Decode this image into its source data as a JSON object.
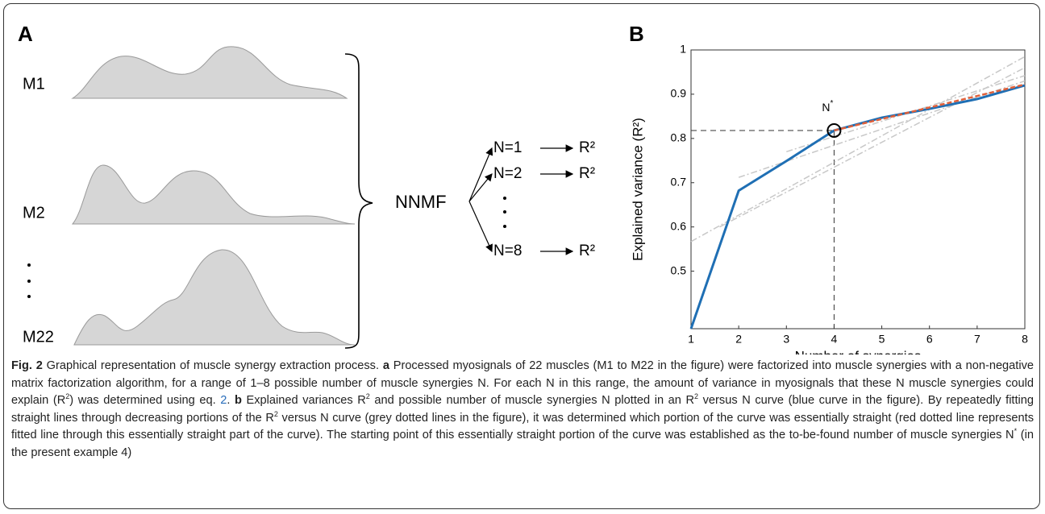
{
  "panel_a": {
    "label": "A",
    "muscles": [
      "M1",
      "M2",
      "M22"
    ],
    "method": "NNMF",
    "branches": [
      {
        "n": "N=1",
        "r": "R²"
      },
      {
        "n": "N=2",
        "r": "R²"
      },
      {
        "n": "N=8",
        "r": "R²"
      }
    ]
  },
  "chart_data": {
    "type": "line",
    "label": "B",
    "x": [
      1,
      2,
      3,
      4,
      5,
      6,
      7,
      8
    ],
    "series": [
      {
        "color": "#1f6fb4",
        "values": [
          0.37,
          0.682,
          0.749,
          0.818,
          0.847,
          0.867,
          0.889,
          0.92
        ]
      },
      {
        "color": "#e0603a",
        "dashed": true,
        "x": [
          4,
          8
        ],
        "values": [
          0.818,
          0.922
        ]
      },
      {
        "color": "#c8c8c8",
        "dashed": true,
        "x": [
          1,
          8
        ],
        "values": [
          0.567,
          0.985
        ]
      },
      {
        "color": "#c8c8c8",
        "dashed": true,
        "x": [
          2,
          8
        ],
        "values": [
          0.712,
          0.93
        ]
      },
      {
        "color": "#c8c8c8",
        "dashed": true,
        "x": [
          3,
          8
        ],
        "values": [
          0.77,
          0.942
        ]
      },
      {
        "color": "#c8c8c8",
        "dashed": true,
        "x": [
          1.6,
          8
        ],
        "values": [
          0.6,
          0.96
        ]
      }
    ],
    "xlim": [
      1,
      8
    ],
    "ylim": [
      0.37,
      1
    ],
    "xticks": [
      1,
      2,
      3,
      4,
      5,
      6,
      7,
      8
    ],
    "yticks": [
      0.5,
      0.6,
      0.7,
      0.8,
      0.9,
      1
    ],
    "xlabel": "Number of synergies",
    "ylabel": "Explained variance (R²)",
    "annotation": {
      "text": "N",
      "sup": "*",
      "x": 4,
      "y": 0.818
    }
  },
  "caption": [
    {
      "text": "Fig. 2",
      "style": "bold"
    },
    {
      "text": " Graphical representation of muscle synergy extraction process. ",
      "style": "normal"
    },
    {
      "text": "a",
      "style": "bold"
    },
    {
      "text": " Processed myosignals of 22 muscles (M1 to M22 in the figure) were factorized into muscle synergies with a non-negative matrix factorization algorithm, for a range of 1–8 possible number of muscle synergies N. For each N in this range, the amount of variance in myosignals that these N muscle synergies could explain (R",
      "style": "normal"
    },
    {
      "text": "2",
      "style": "sup"
    },
    {
      "text": ") was determined using eq. ",
      "style": "normal"
    },
    {
      "text": "2",
      "style": "link"
    },
    {
      "text": ". ",
      "style": "normal"
    },
    {
      "text": "b",
      "style": "bold"
    },
    {
      "text": " Explained variances R",
      "style": "normal"
    },
    {
      "text": "2",
      "style": "sup"
    },
    {
      "text": " and possible number of muscle synergies N plotted in an R",
      "style": "normal"
    },
    {
      "text": "2",
      "style": "sup"
    },
    {
      "text": " versus N curve (blue curve in the figure). By repeatedly fitting straight lines through decreasing portions of the R",
      "style": "normal"
    },
    {
      "text": "2",
      "style": "sup"
    },
    {
      "text": " versus N curve (grey dotted lines in the figure), it was determined which portion of the curve was essentially straight (red dotted line represents fitted line through this essentially straight part of the curve). The starting point of this essentially straight portion of the curve was established as the to-be-found number of muscle synergies N",
      "style": "normal"
    },
    {
      "text": "*",
      "style": "sup"
    },
    {
      "text": " (in the present example 4)",
      "style": "normal"
    }
  ]
}
